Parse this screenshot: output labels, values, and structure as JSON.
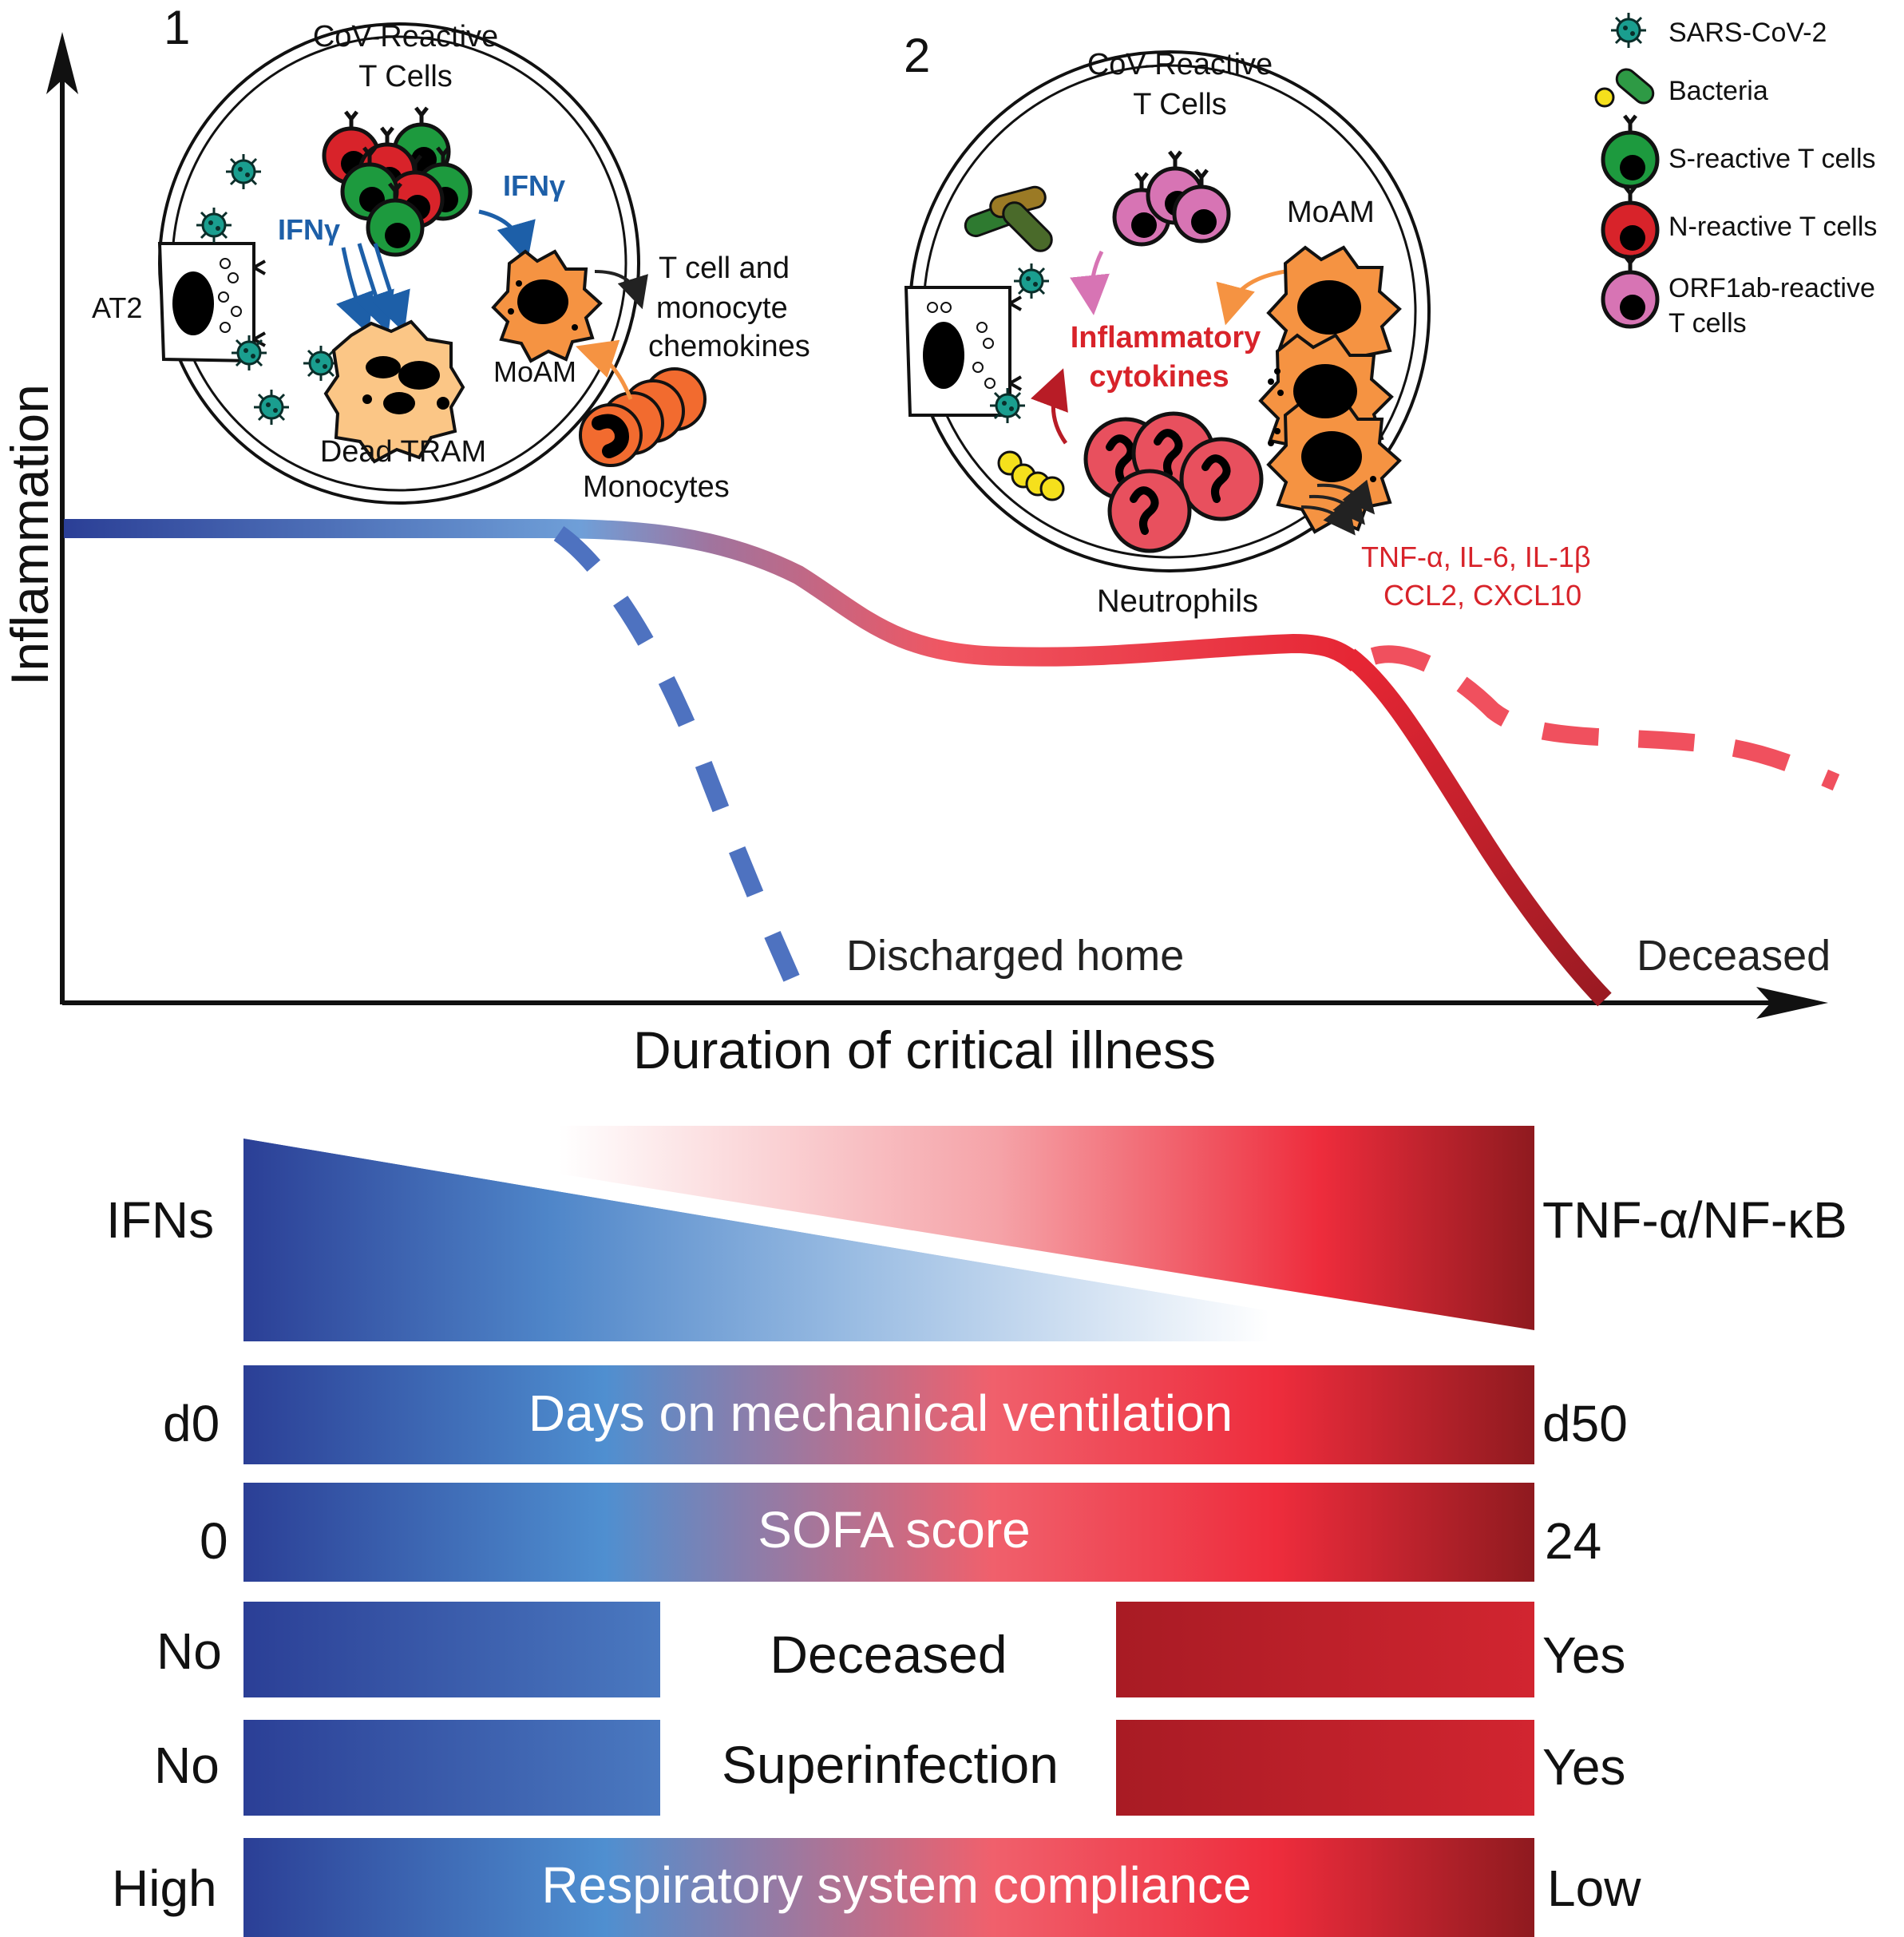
{
  "axes": {
    "y_label": "Inflammation",
    "x_label": "Duration of critical illness"
  },
  "panels": [
    {
      "number": "1",
      "title_line1": "CoV-Reactive",
      "title_line2": "T Cells",
      "labels": {
        "at2": "AT2",
        "ifng_left": "IFNγ",
        "ifng_right": "IFNγ",
        "moam": "MoAM",
        "dead_tram": "Dead TRAM",
        "chemokines_1": "T cell and",
        "chemokines_2": "monocyte",
        "chemokines_3": "chemokines",
        "monocytes": "Monocytes"
      }
    },
    {
      "number": "2",
      "title_line1": "CoV-Reactive",
      "title_line2": "T Cells",
      "labels": {
        "moam": "MoAM",
        "cytokines_1": "Inflammatory",
        "cytokines_2": "cytokines",
        "neutrophils": "Neutrophils",
        "cytokine_list_1": "TNF-α, IL-6, IL-1β",
        "cytokine_list_2": "CCL2, CXCL10"
      }
    }
  ],
  "legend": [
    {
      "label": "SARS-CoV-2",
      "icon": "virus-icon",
      "color": "#1a9e8f"
    },
    {
      "label": "Bacteria",
      "icon": "bacteria-icon",
      "color": "#2e9a45"
    },
    {
      "label": "S-reactive T cells",
      "icon": "t-cell-icon",
      "color": "#1d9a3e"
    },
    {
      "label": "N-reactive T cells",
      "icon": "t-cell-icon",
      "color": "#d8232a"
    },
    {
      "label": "ORF1ab-reactive",
      "label_line2": "T cells",
      "icon": "t-cell-icon",
      "color": "#d774b4"
    }
  ],
  "outcomes": {
    "discharged": "Discharged home",
    "deceased": "Deceased"
  },
  "bars": {
    "ifns": {
      "left": "IFNs",
      "right": "TNF-α/NF-κB"
    },
    "ventilation": {
      "left": "d0",
      "center": "Days on mechanical ventilation",
      "right": "d50"
    },
    "sofa": {
      "left": "0",
      "center": "SOFA score",
      "right": "24"
    },
    "deceased": {
      "left": "No",
      "center": "Deceased",
      "right": "Yes"
    },
    "superinfection": {
      "left": "No",
      "center": "Superinfection",
      "right": "Yes"
    },
    "compliance": {
      "left": "High",
      "center": "Respiratory system compliance",
      "right": "Low"
    }
  },
  "colors": {
    "blue_dark": "#2b3f96",
    "blue_mid": "#4d8fd0",
    "red_bright": "#ee2c3c",
    "red_dark": "#8f1a1f",
    "neutrophil": "#e8505e",
    "moam": "#f59342",
    "ifng_text": "#1d5fa8",
    "cytokine_text": "#d8232a"
  }
}
